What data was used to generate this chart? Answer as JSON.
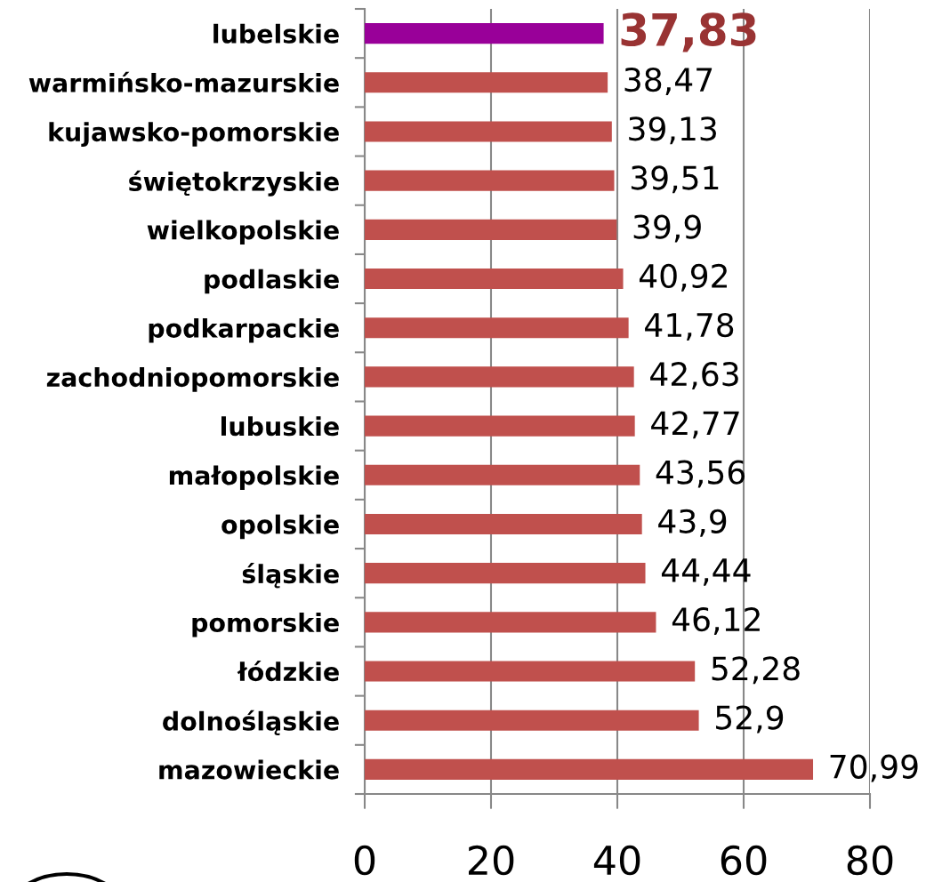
{
  "chart_data": {
    "type": "bar",
    "orientation": "horizontal",
    "categories": [
      "lubelskie",
      "warmińsko-mazurskie",
      "kujawsko-pomorskie",
      "świętokrzyskie",
      "wielkopolskie",
      "podlaskie",
      "podkarpackie",
      "zachodniopomorskie",
      "lubuskie",
      "małopolskie",
      "opolskie",
      "śląskie",
      "pomorskie",
      "łódzkie",
      "dolnośląskie",
      "mazowieckie"
    ],
    "values": [
      37.83,
      38.47,
      39.13,
      39.51,
      39.9,
      40.92,
      41.78,
      42.63,
      42.77,
      43.56,
      43.9,
      44.44,
      46.12,
      52.28,
      52.9,
      70.99
    ],
    "value_labels": [
      "37,83",
      "38,47",
      "39,13",
      "39,51",
      "39,9",
      "40,92",
      "41,78",
      "42,63",
      "42,77",
      "43,56",
      "43,9",
      "44,44",
      "46,12",
      "52,28",
      "52,9",
      "70,99"
    ],
    "colors": [
      "#990099",
      "#c0504d",
      "#c0504d",
      "#c0504d",
      "#c0504d",
      "#c0504d",
      "#c0504d",
      "#c0504d",
      "#c0504d",
      "#c0504d",
      "#c0504d",
      "#c0504d",
      "#c0504d",
      "#c0504d",
      "#c0504d",
      "#c0504d"
    ],
    "xlim": [
      0,
      80
    ],
    "xticks": [
      0,
      20,
      40,
      60,
      80
    ],
    "grid": "x"
  }
}
